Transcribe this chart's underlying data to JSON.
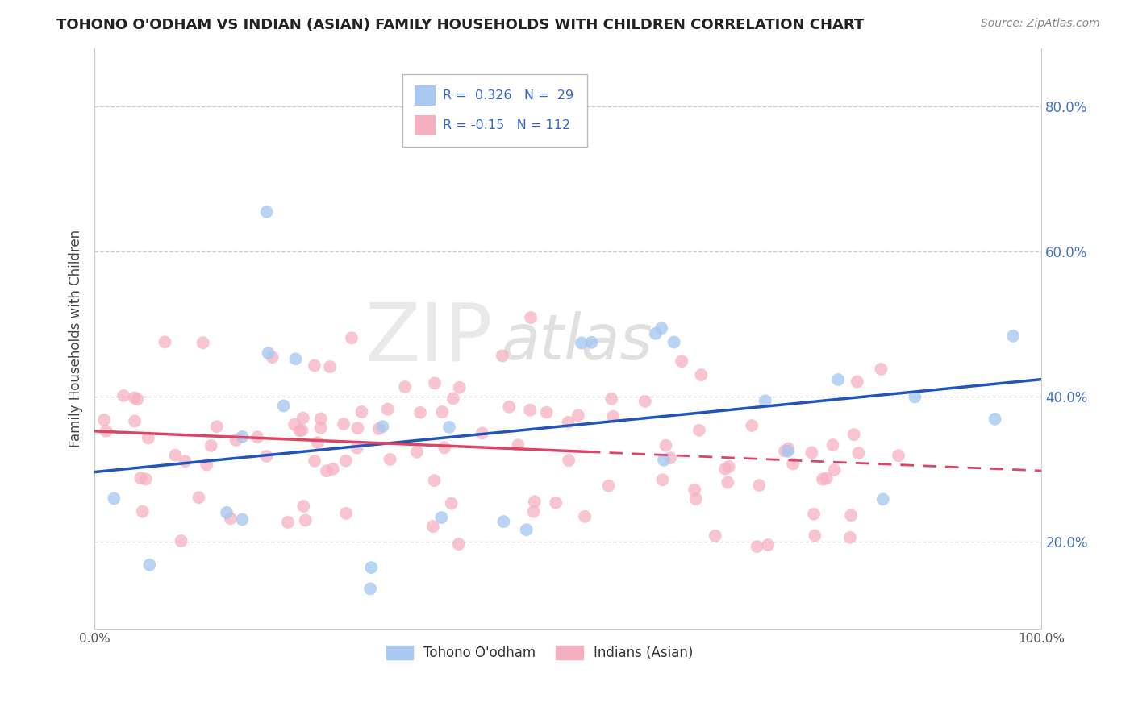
{
  "title": "TOHONO O'ODHAM VS INDIAN (ASIAN) FAMILY HOUSEHOLDS WITH CHILDREN CORRELATION CHART",
  "source": "Source: ZipAtlas.com",
  "ylabel": "Family Households with Children",
  "xlim": [
    0.0,
    1.0
  ],
  "ylim": [
    0.08,
    0.88
  ],
  "xticks": [
    0.0,
    1.0
  ],
  "xtick_labels": [
    "0.0%",
    "100.0%"
  ],
  "yticks": [
    0.2,
    0.4,
    0.6,
    0.8
  ],
  "ytick_labels": [
    "20.0%",
    "40.0%",
    "60.0%",
    "80.0%"
  ],
  "blue_R": 0.326,
  "blue_N": 29,
  "pink_R": -0.15,
  "pink_N": 112,
  "blue_color": "#a8c8f0",
  "pink_color": "#f5b0c0",
  "blue_line_color": "#2255bb",
  "pink_line_color": "#dd4466",
  "legend1_label": "Tohono O'odham",
  "legend2_label": "Indians (Asian)",
  "watermark_zip": "ZIP",
  "watermark_atlas": "atlas",
  "blue_seed": 42,
  "pink_seed": 77,
  "title_fontsize": 13,
  "source_fontsize": 10,
  "tick_fontsize": 11,
  "ylabel_fontsize": 12,
  "legend_fontsize": 12,
  "watermark_fontsize_zip": 68,
  "watermark_fontsize_atlas": 68,
  "background_color": "#ffffff",
  "grid_color": "#cccccc",
  "spine_color": "#cccccc",
  "ytick_color": "#4472c4",
  "xtick_color": "#555555",
  "title_color": "#222222",
  "source_color": "#888888",
  "ylabel_color": "#444444"
}
